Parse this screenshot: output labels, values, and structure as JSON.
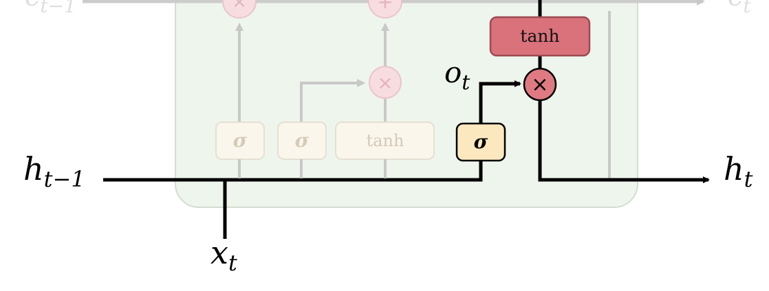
{
  "labels": {
    "c_prev": {
      "base": "c",
      "sub": "t−1"
    },
    "c_next": {
      "base": "c",
      "sub": "t"
    },
    "h_prev": {
      "base": "h",
      "sub": "t−1"
    },
    "h_next": {
      "base": "h",
      "sub": "t"
    },
    "x_in": {
      "base": "x",
      "sub": "t"
    },
    "o_gate": {
      "base": "o",
      "sub": "t"
    }
  },
  "gates": {
    "forget_sigma": "σ",
    "input_sigma": "σ",
    "candidate_tanh": "tanh",
    "output_sigma": "σ",
    "cell_tanh": "tanh"
  },
  "operators": {
    "forget_multiply": "×",
    "cell_add": "+",
    "input_multiply": "×",
    "output_multiply": "×"
  },
  "colors": {
    "cell_background": "#eef5ec",
    "cell_border": "#d4ddd2",
    "faded_line": "#c8c8c8",
    "faded_box_fill": "#fbf6ec",
    "faded_box_border": "#e6dfd2",
    "faded_text": "#cfc6b4",
    "faded_circle_fill": "#f7dde0",
    "faded_circle_border": "#e9c5ca",
    "active_line": "#000000",
    "output_gate_fill": "#fbe8bf",
    "tanh_fill": "#d9727a",
    "tanh_border": "#9c4a52",
    "multiply_fill": "#e07a82"
  }
}
